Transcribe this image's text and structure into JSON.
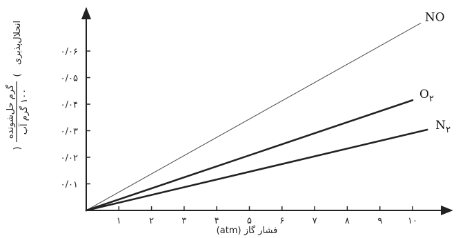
{
  "chart_data": {
    "type": "line",
    "title": "",
    "xlabel": "فشار گاز (atm)",
    "ylabel": {
      "prefix": "انحلال‌پذیری",
      "numerator": "گرم حل‌شونده",
      "denominator": "۱۰۰ گرم آب"
    },
    "xlim": [
      0,
      11
    ],
    "ylim": [
      0,
      0.07
    ],
    "x_ticks": [
      {
        "value": 1,
        "label": "۱"
      },
      {
        "value": 2,
        "label": "۲"
      },
      {
        "value": 3,
        "label": "۳"
      },
      {
        "value": 4,
        "label": "۴"
      },
      {
        "value": 5,
        "label": "۵"
      },
      {
        "value": 6,
        "label": "۶"
      },
      {
        "value": 7,
        "label": "۷"
      },
      {
        "value": 8,
        "label": "۸"
      },
      {
        "value": 9,
        "label": "۹"
      },
      {
        "value": 10,
        "label": "۱۰"
      }
    ],
    "y_ticks": [
      {
        "value": 0.01,
        "label": "۰/۰۱"
      },
      {
        "value": 0.02,
        "label": "۰/۰۲"
      },
      {
        "value": 0.03,
        "label": "۰/۰۳"
      },
      {
        "value": 0.04,
        "label": "۰/۰۴"
      },
      {
        "value": 0.05,
        "label": "۰/۰۵"
      },
      {
        "value": 0.06,
        "label": "۰/۰۶"
      }
    ],
    "grid": false,
    "series": [
      {
        "name": "NO",
        "label_base": "NO",
        "label_sub": "",
        "stroke": "#555555",
        "weight": "thin",
        "x": [
          0,
          10.25
        ],
        "y": [
          0,
          0.0705
        ]
      },
      {
        "name": "O₂",
        "label_base": "O",
        "label_sub": "۲",
        "stroke": "#222222",
        "weight": "thick",
        "x": [
          0,
          10.0
        ],
        "y": [
          0,
          0.0415
        ]
      },
      {
        "name": "N₂",
        "label_base": "N",
        "label_sub": "۲",
        "stroke": "#222222",
        "weight": "thick",
        "x": [
          0,
          10.45
        ],
        "y": [
          0,
          0.0304
        ]
      }
    ]
  }
}
